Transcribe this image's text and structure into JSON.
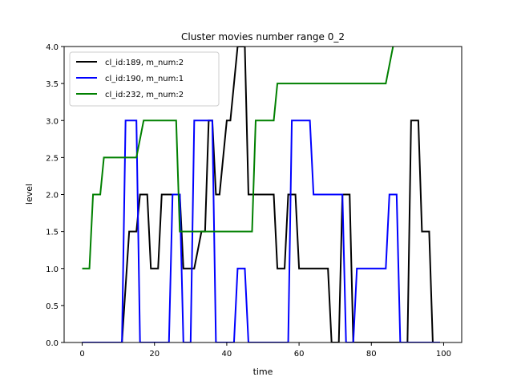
{
  "chart_data": {
    "type": "line",
    "title": "Cluster movies number range 0_2",
    "xlabel": "time",
    "ylabel": "level",
    "xlim": [
      -5,
      105
    ],
    "ylim": [
      0,
      4
    ],
    "xticks": [
      0,
      20,
      40,
      60,
      80,
      100
    ],
    "yticks": [
      0.0,
      0.5,
      1.0,
      1.5,
      2.0,
      2.5,
      3.0,
      3.5,
      4.0
    ],
    "xtick_labels": [
      "0",
      "20",
      "40",
      "60",
      "80",
      "100"
    ],
    "ytick_labels": [
      "0.0",
      "0.5",
      "1.0",
      "1.5",
      "2.0",
      "2.5",
      "3.0",
      "3.5",
      "4.0"
    ],
    "grid": false,
    "legend_position": "top-left",
    "series": [
      {
        "name": "cl_id:189, m_num:2",
        "color": "#000000",
        "x": [
          0,
          11,
          13,
          15,
          16,
          18,
          19,
          21,
          22,
          24,
          25,
          27,
          28,
          30,
          31,
          33,
          34,
          35,
          36,
          37,
          38,
          40,
          41,
          43,
          44,
          45,
          46,
          47,
          48,
          50,
          51,
          53,
          54,
          56,
          57,
          59,
          60,
          62,
          63,
          65,
          66,
          68,
          69,
          71,
          72,
          74,
          75,
          77,
          78,
          80,
          81,
          83,
          84,
          86,
          87,
          89,
          90,
          91,
          93,
          94,
          96,
          97,
          99
        ],
        "y": [
          0,
          0,
          1.5,
          1.5,
          2,
          2,
          1,
          1,
          2,
          2,
          2,
          2,
          1,
          1,
          1,
          1.5,
          1.5,
          3,
          3,
          2,
          2,
          3,
          3,
          4,
          4,
          4,
          2,
          2,
          2,
          2,
          2,
          2,
          1,
          1,
          2,
          2,
          1,
          1,
          1,
          1,
          1,
          1,
          0,
          0,
          2,
          2,
          0,
          0,
          0,
          0,
          0,
          0,
          0,
          0,
          0,
          0,
          0,
          3,
          3,
          1.5,
          1.5,
          0,
          0
        ]
      },
      {
        "name": "cl_id:190, m_num:1",
        "color": "#0000ff",
        "x": [
          0,
          11,
          12,
          15,
          16,
          18,
          19,
          21,
          22,
          24,
          25,
          27,
          28,
          30,
          31,
          33,
          34,
          36,
          37,
          39,
          40,
          42,
          43,
          45,
          46,
          48,
          49,
          51,
          52,
          54,
          55,
          57,
          58,
          60,
          61,
          63,
          64,
          66,
          67,
          69,
          70,
          72,
          73,
          75,
          76,
          78,
          79,
          81,
          82,
          84,
          85,
          87,
          88,
          90,
          91,
          93,
          94,
          96,
          97,
          99
        ],
        "y": [
          0,
          0,
          3,
          3,
          0,
          0,
          0,
          0,
          0,
          0,
          2,
          2,
          0,
          0,
          3,
          3,
          3,
          3,
          0,
          0,
          0,
          0,
          1,
          1,
          0,
          0,
          0,
          0,
          0,
          0,
          0,
          0,
          3,
          3,
          3,
          3,
          2,
          2,
          2,
          2,
          2,
          2,
          0,
          0,
          1,
          1,
          1,
          1,
          1,
          1,
          2,
          2,
          0,
          0,
          0,
          0,
          0,
          0,
          0,
          0
        ]
      },
      {
        "name": "cl_id:232, m_num:2",
        "color": "#008000",
        "x": [
          0,
          2,
          3,
          5,
          6,
          8,
          9,
          11,
          12,
          14,
          15,
          17,
          18,
          20,
          21,
          23,
          24,
          26,
          27,
          29,
          30,
          32,
          33,
          35,
          36,
          38,
          39,
          41,
          42,
          44,
          45,
          47,
          48,
          50,
          51,
          53,
          54,
          56,
          57,
          59,
          60,
          62,
          63,
          65,
          66,
          68,
          69,
          71,
          72,
          74,
          75,
          77,
          78,
          80,
          81,
          83,
          84,
          86
        ],
        "y": [
          1,
          1,
          2,
          2,
          2.5,
          2.5,
          2.5,
          2.5,
          2.5,
          2.5,
          2.5,
          3,
          3,
          3,
          3,
          3,
          3,
          3,
          1.5,
          1.5,
          1.5,
          1.5,
          1.5,
          1.5,
          1.5,
          1.5,
          1.5,
          1.5,
          1.5,
          1.5,
          1.5,
          1.5,
          3,
          3,
          3,
          3,
          3.5,
          3.5,
          3.5,
          3.5,
          3.5,
          3.5,
          3.5,
          3.5,
          3.5,
          3.5,
          3.5,
          3.5,
          3.5,
          3.5,
          3.5,
          3.5,
          3.5,
          3.5,
          3.5,
          3.5,
          3.5,
          4
        ]
      }
    ]
  }
}
